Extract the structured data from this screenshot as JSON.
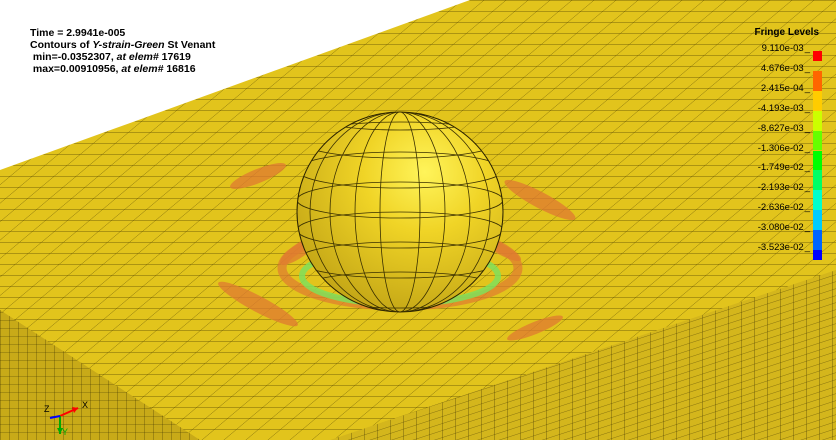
{
  "info": {
    "time_label": "Time = 2.9941e-005",
    "contours_prefix": "Contours of ",
    "contours_quantity": "Y-strain-Green",
    "contours_suffix": " St Venant",
    "min_prefix": " min=-0.0352307,",
    "min_elem": " at elem#",
    "min_elem_id": " 17619",
    "max_prefix": " max=0.00910956,",
    "max_elem": " at elem#",
    "max_elem_id": " 16816"
  },
  "legend": {
    "title": "Fringe Levels",
    "levels": [
      {
        "label": "9.110e-03",
        "color": "#ff0000"
      },
      {
        "label": "4.676e-03",
        "color": "#ff6600"
      },
      {
        "label": "2.415e-04",
        "color": "#ffcc00"
      },
      {
        "label": "-4.193e-03",
        "color": "#ccff00"
      },
      {
        "label": "-8.627e-03",
        "color": "#66ff00"
      },
      {
        "label": "-1.306e-02",
        "color": "#00ff00"
      },
      {
        "label": "-1.749e-02",
        "color": "#00ff66"
      },
      {
        "label": "-2.193e-02",
        "color": "#00ffcc"
      },
      {
        "label": "-2.636e-02",
        "color": "#00ccff"
      },
      {
        "label": "-3.080e-02",
        "color": "#0066ff"
      },
      {
        "label": "-3.523e-02",
        "color": "#0000ff"
      }
    ]
  },
  "triad": {
    "x_label": "X",
    "y_label": "Y",
    "z_label": "Z"
  },
  "colors": {
    "mesh_fill": "#e6c81e",
    "mesh_line": "#3a3000",
    "sphere_fill": "#e8c820",
    "hot_spot": "#e08030",
    "contact_ring": "#7fe05a"
  }
}
